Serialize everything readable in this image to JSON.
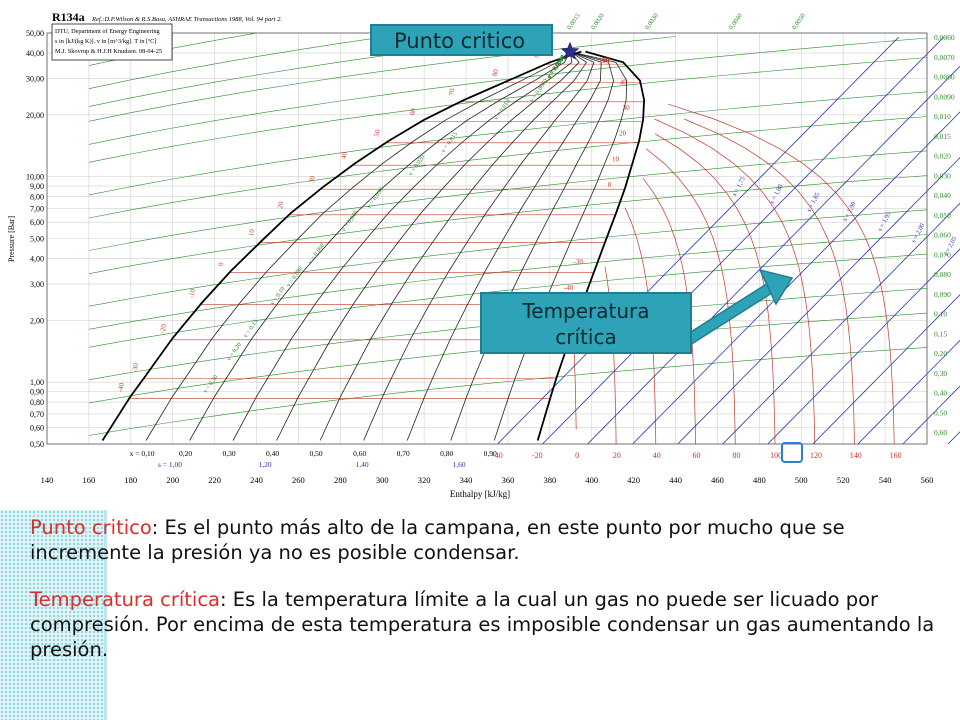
{
  "chart_data": {
    "type": "line",
    "title": "R134a",
    "subtitle": "Ref.:D.P.Wilson & R.S.Basu, ASHRAE Transactions 1988, Vol. 94 part 2.",
    "info_box": [
      "DTU, Department of Energy Engineering",
      "s in [kJ/(kg K)]. v in [m^3/kg]. T in [ºC]",
      "M.J. Skovrup & H.J.H Knudsen. 08-04-25"
    ],
    "xlabel": "Enthalpy [kJ/kg]",
    "ylabel": "Pressure [Bar]",
    "xlim": [
      140,
      560
    ],
    "ylim": [
      0.5,
      50
    ],
    "y_scale": "log",
    "grid": true,
    "x_ticks": [
      "140",
      "160",
      "180",
      "200",
      "220",
      "240",
      "260",
      "280",
      "300",
      "320",
      "340",
      "360",
      "380",
      "400",
      "420",
      "440",
      "460",
      "480",
      "500",
      "520",
      "540",
      "560"
    ],
    "y_ticks": [
      "50,00",
      "40,00",
      "30,00",
      "20,00",
      "10,00",
      "9,00",
      "8,00",
      "7,00",
      "6,00",
      "5,00",
      "4,00",
      "3,00",
      "2,00",
      "1,00",
      "0,90",
      "0,80",
      "0,70",
      "0,60",
      "0,50"
    ],
    "quality_labels": [
      "x = 0,10",
      "0,20",
      "0,30",
      "0,40",
      "0,50",
      "0,60",
      "0,70",
      "0,80",
      "0,90"
    ],
    "entropy_bottom_labels": [
      "s = 1,00",
      "1,20",
      "1,40",
      "1,60"
    ],
    "bottom_temperature_labels": [
      "-40",
      "-20",
      "0",
      "20",
      "40",
      "60",
      "80",
      "100",
      "120",
      "140",
      "160"
    ],
    "right_specific_volume_labels": [
      "0,0060",
      "0,0070",
      "0,0080",
      "0,0090",
      "0,010",
      "0,015",
      "0,020",
      "0,030",
      "0,040",
      "0,050",
      "0,060",
      "0,070",
      "0,080",
      "0,090",
      "0,10",
      "0,15",
      "0,20",
      "0,30",
      "0,40",
      "0,50",
      "0,60"
    ],
    "top_specific_volume_labels": [
      "0,0015",
      "0,0020",
      "0,0030",
      "0,0040",
      "0,0050"
    ],
    "left_isotherm_labels": [
      "-40",
      "-30",
      "-20",
      "-10",
      "0",
      "10",
      "20",
      "30",
      "40",
      "50",
      "60",
      "70",
      "80",
      "90"
    ],
    "superheat_isotherm_labels": [
      "100",
      "90",
      "80",
      "70",
      "60",
      "50",
      "40",
      "30",
      "20",
      "10",
      "0",
      "-30",
      "-40"
    ],
    "isentrope_labels": [
      "s = 1,75",
      "s = 1,80",
      "s = 1,85",
      "s = 1,90",
      "s = 1,95",
      "s = 2,00",
      "s = 2,05",
      "s = 2,10",
      "s = 2,15",
      "s = 2,20",
      "s = 2,25"
    ],
    "isochore_labels": [
      "v = 0,0015",
      "v = 0,0020",
      "v = 0,0030",
      "v = 0,0040",
      "v = 0,0050",
      "v = 0,0060",
      "v = 0,0080",
      "v = 0,010",
      "v = 0,015",
      "v = 0,020",
      "v = 0,030",
      "v = 0,040",
      "v = 0,060",
      "v = 0,080",
      "v = 0,10",
      "v = 0,15",
      "v = 0,20",
      "v = 0,30"
    ],
    "saturation_liquid": [
      [
        166.5,
        0.52
      ],
      [
        179.8,
        0.85
      ],
      [
        186.7,
        1.06
      ],
      [
        200.0,
        1.64
      ],
      [
        213.9,
        2.43
      ],
      [
        227.9,
        3.49
      ],
      [
        242.5,
        4.88
      ],
      [
        256.4,
        6.65
      ],
      [
        271.6,
        8.87
      ],
      [
        287.0,
        11.6
      ],
      [
        303.0,
        14.9
      ],
      [
        320.0,
        18.9
      ],
      [
        339.0,
        23.6
      ],
      [
        360.0,
        29.3
      ],
      [
        380.0,
        36.0
      ],
      [
        395.0,
        40.6
      ]
    ],
    "saturation_vapor": [
      [
        374.2,
        0.52
      ],
      [
        380.4,
        0.85
      ],
      [
        383.3,
        1.06
      ],
      [
        389.6,
        1.64
      ],
      [
        395.6,
        2.43
      ],
      [
        401.3,
        3.49
      ],
      [
        406.6,
        4.88
      ],
      [
        411.6,
        6.65
      ],
      [
        416.0,
        8.87
      ],
      [
        419.4,
        11.6
      ],
      [
        422.6,
        14.9
      ],
      [
        424.5,
        18.9
      ],
      [
        425.0,
        23.6
      ],
      [
        423.0,
        29.3
      ],
      [
        415.0,
        36.0
      ],
      [
        397.0,
        40.6
      ]
    ],
    "critical_point": {
      "h": 389.6,
      "p": 40.6,
      "t": 101.1
    }
  },
  "annotations": {
    "critical_point_label": "Punto critico",
    "critical_temperature_label_line1": "Temperatura",
    "critical_temperature_label_line2": "crítica",
    "critical_temperature_highlight_tick": "100"
  },
  "text": {
    "p1_term": "Punto critico",
    "p1_body": ": Es el punto más alto de la campana, en este punto por mucho que se incremente la presión ya no es posible condensar.",
    "p2_term": "Temperatura crítica",
    "p2_body": ": Es la temperatura límite a la cual un gas no puede ser licuado por compresión. Por encima de esta temperatura es imposible condensar un gas aumentando la presión."
  },
  "colors": {
    "saturation": "#000000",
    "isotherm": "#c0392b",
    "isochore": "#2e8b2e",
    "isentrope": "#2a33a8",
    "quality": "#222222",
    "grid": "#d0d0d0",
    "accent": "#2ea3b8",
    "term": "#d8302a"
  }
}
